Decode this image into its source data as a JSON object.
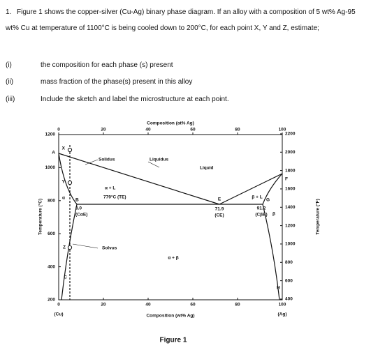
{
  "question": {
    "number": "1.",
    "text": "Figure 1 shows the copper-silver (Cu-Ag) binary phase diagram. If an alloy with a composition of 5 wt% Ag-95 wt% Cu at temperature of 1100°C is being cooled down to 200°C, for each point X, Y and Z, estimate;"
  },
  "items": [
    {
      "marker": "(i)",
      "text": "the composition for each phase (s) present"
    },
    {
      "marker": "(ii)",
      "text": "mass fraction of the phase(s) present in this alloy"
    },
    {
      "marker": "(iii)",
      "text": "Include the sketch and label the microstructure at each point."
    }
  ],
  "figure": {
    "caption": "Figure 1",
    "top_axis": {
      "label": "Composition (at% Ag)",
      "ticks": [
        0,
        20,
        40,
        60,
        80,
        100
      ]
    },
    "left_axis": {
      "label": "Temperature (°C)",
      "ticks": [
        1200,
        1000,
        800,
        600,
        400,
        200
      ]
    },
    "right_axis": {
      "label": "Temperature (°F)",
      "ticks": [
        2200,
        2000,
        1800,
        1600,
        1400,
        1200,
        1000,
        800,
        600,
        400
      ]
    },
    "bottom_axis": {
      "label": "Composition (wt% Ag)",
      "ticks": [
        0,
        20,
        40,
        60,
        80,
        100
      ],
      "left_end": "(Cu)",
      "right_end": "(Ag)"
    },
    "labels": {
      "liquidus": "Liquidus",
      "liquid": "Liquid",
      "solidus": "Solidus",
      "alpha_l": "α + L",
      "eutectic": "779°C (TE)",
      "alpha": "α",
      "c_alpha": "8.0",
      "c_alpha_sym": "(CαE)",
      "c_e": "71.9",
      "c_e_sym": "(CE)",
      "beta_l": "β + L",
      "c_beta": "91.2",
      "c_beta_sym": "(CβE)",
      "beta": "β",
      "solvus": "Solvus",
      "alpha_beta": "α + β"
    },
    "points": {
      "x": "X",
      "y": "Y",
      "z": "Z",
      "a": "A",
      "b": "B",
      "c": "C",
      "e": "E",
      "f": "F",
      "g": "G",
      "h": "H"
    }
  }
}
